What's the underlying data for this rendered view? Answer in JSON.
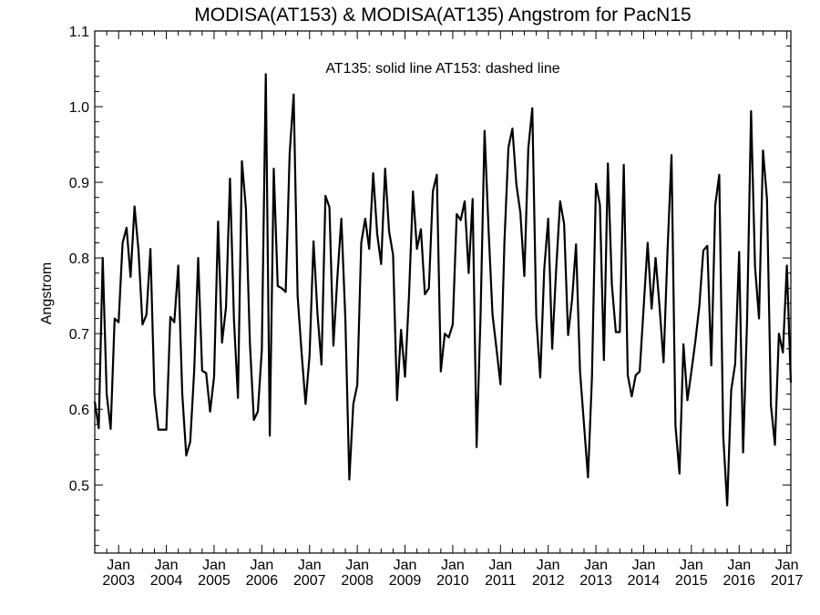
{
  "chart_data": {
    "type": "line",
    "title": "MODISA(AT153) & MODISA(AT135)  Angstrom for PacN15",
    "annotation": "AT135: solid line   AT153: dashed line",
    "xlabel": "",
    "ylabel": "Angstrom",
    "ylim": [
      0.41,
      1.1
    ],
    "y_ticks": [
      0.5,
      0.6,
      0.7,
      0.8,
      0.9,
      1.0,
      1.1
    ],
    "y_tick_labels": [
      "0.5",
      "0.6",
      "0.7",
      "0.8",
      "0.9",
      "1.0",
      "1.1"
    ],
    "xlim": [
      "2002-07",
      "2017-02"
    ],
    "x_ticks": [
      {
        "month": "Jan",
        "year": "2003",
        "date": "2003-01"
      },
      {
        "month": "Jan",
        "year": "2004",
        "date": "2004-01"
      },
      {
        "month": "Jan",
        "year": "2005",
        "date": "2005-01"
      },
      {
        "month": "Jan",
        "year": "2006",
        "date": "2006-01"
      },
      {
        "month": "Jan",
        "year": "2007",
        "date": "2007-01"
      },
      {
        "month": "Jan",
        "year": "2008",
        "date": "2008-01"
      },
      {
        "month": "Jan",
        "year": "2009",
        "date": "2009-01"
      },
      {
        "month": "Jan",
        "year": "2010",
        "date": "2010-01"
      },
      {
        "month": "Jan",
        "year": "2011",
        "date": "2011-01"
      },
      {
        "month": "Jan",
        "year": "2012",
        "date": "2012-01"
      },
      {
        "month": "Jan",
        "year": "2013",
        "date": "2013-01"
      },
      {
        "month": "Jan",
        "year": "2014",
        "date": "2014-01"
      },
      {
        "month": "Jan",
        "year": "2015",
        "date": "2015-01"
      },
      {
        "month": "Jan",
        "year": "2016",
        "date": "2016-01"
      },
      {
        "month": "Jan",
        "year": "2017",
        "date": "2017-01"
      }
    ],
    "grid": false,
    "series": [
      {
        "name": "AT135",
        "style": "solid",
        "color": "#000000",
        "start": "2002-07",
        "values": [
          0.61,
          0.575,
          0.8,
          0.62,
          0.574,
          0.72,
          0.715,
          0.82,
          0.84,
          0.775,
          0.868,
          0.81,
          0.712,
          0.725,
          0.812,
          0.62,
          0.573,
          0.573,
          0.573,
          0.722,
          0.715,
          0.79,
          0.62,
          0.539,
          0.557,
          0.651,
          0.8,
          0.651,
          0.648,
          0.597,
          0.643,
          0.848,
          0.688,
          0.735,
          0.905,
          0.718,
          0.615,
          0.928,
          0.866,
          0.688,
          0.586,
          0.597,
          0.678,
          1.043,
          0.565,
          0.918,
          0.763,
          0.76,
          0.755,
          0.938,
          1.016,
          0.75,
          0.675,
          0.607,
          0.671,
          0.822,
          0.726,
          0.659,
          0.882,
          0.867,
          0.684,
          0.775,
          0.852,
          0.72,
          0.507,
          0.607,
          0.632,
          0.82,
          0.852,
          0.812,
          0.912,
          0.832,
          0.792,
          0.918,
          0.835,
          0.804,
          0.612,
          0.705,
          0.643,
          0.75,
          0.888,
          0.812,
          0.838,
          0.752,
          0.76,
          0.888,
          0.91,
          0.65,
          0.7,
          0.695,
          0.712,
          0.858,
          0.85,
          0.875,
          0.78,
          0.878,
          0.55,
          0.725,
          0.968,
          0.838,
          0.725,
          0.68,
          0.633,
          0.822,
          0.946,
          0.971,
          0.897,
          0.86,
          0.776,
          0.945,
          0.998,
          0.722,
          0.642,
          0.785,
          0.852,
          0.68,
          0.785,
          0.875,
          0.845,
          0.698,
          0.745,
          0.818,
          0.65,
          0.58,
          0.51,
          0.642,
          0.898,
          0.87,
          0.665,
          0.925,
          0.765,
          0.702,
          0.702,
          0.923,
          0.645,
          0.617,
          0.645,
          0.65,
          0.735,
          0.82,
          0.733,
          0.8,
          0.735,
          0.662,
          0.81,
          0.936,
          0.578,
          0.515,
          0.686,
          0.612,
          0.65,
          0.69,
          0.737,
          0.81,
          0.816,
          0.658,
          0.87,
          0.91,
          0.565,
          0.473,
          0.625,
          0.66,
          0.808,
          0.543,
          0.718,
          0.994,
          0.788,
          0.72,
          0.942,
          0.878,
          0.605,
          0.553,
          0.7,
          0.675,
          0.79,
          0.635
        ]
      }
    ]
  }
}
